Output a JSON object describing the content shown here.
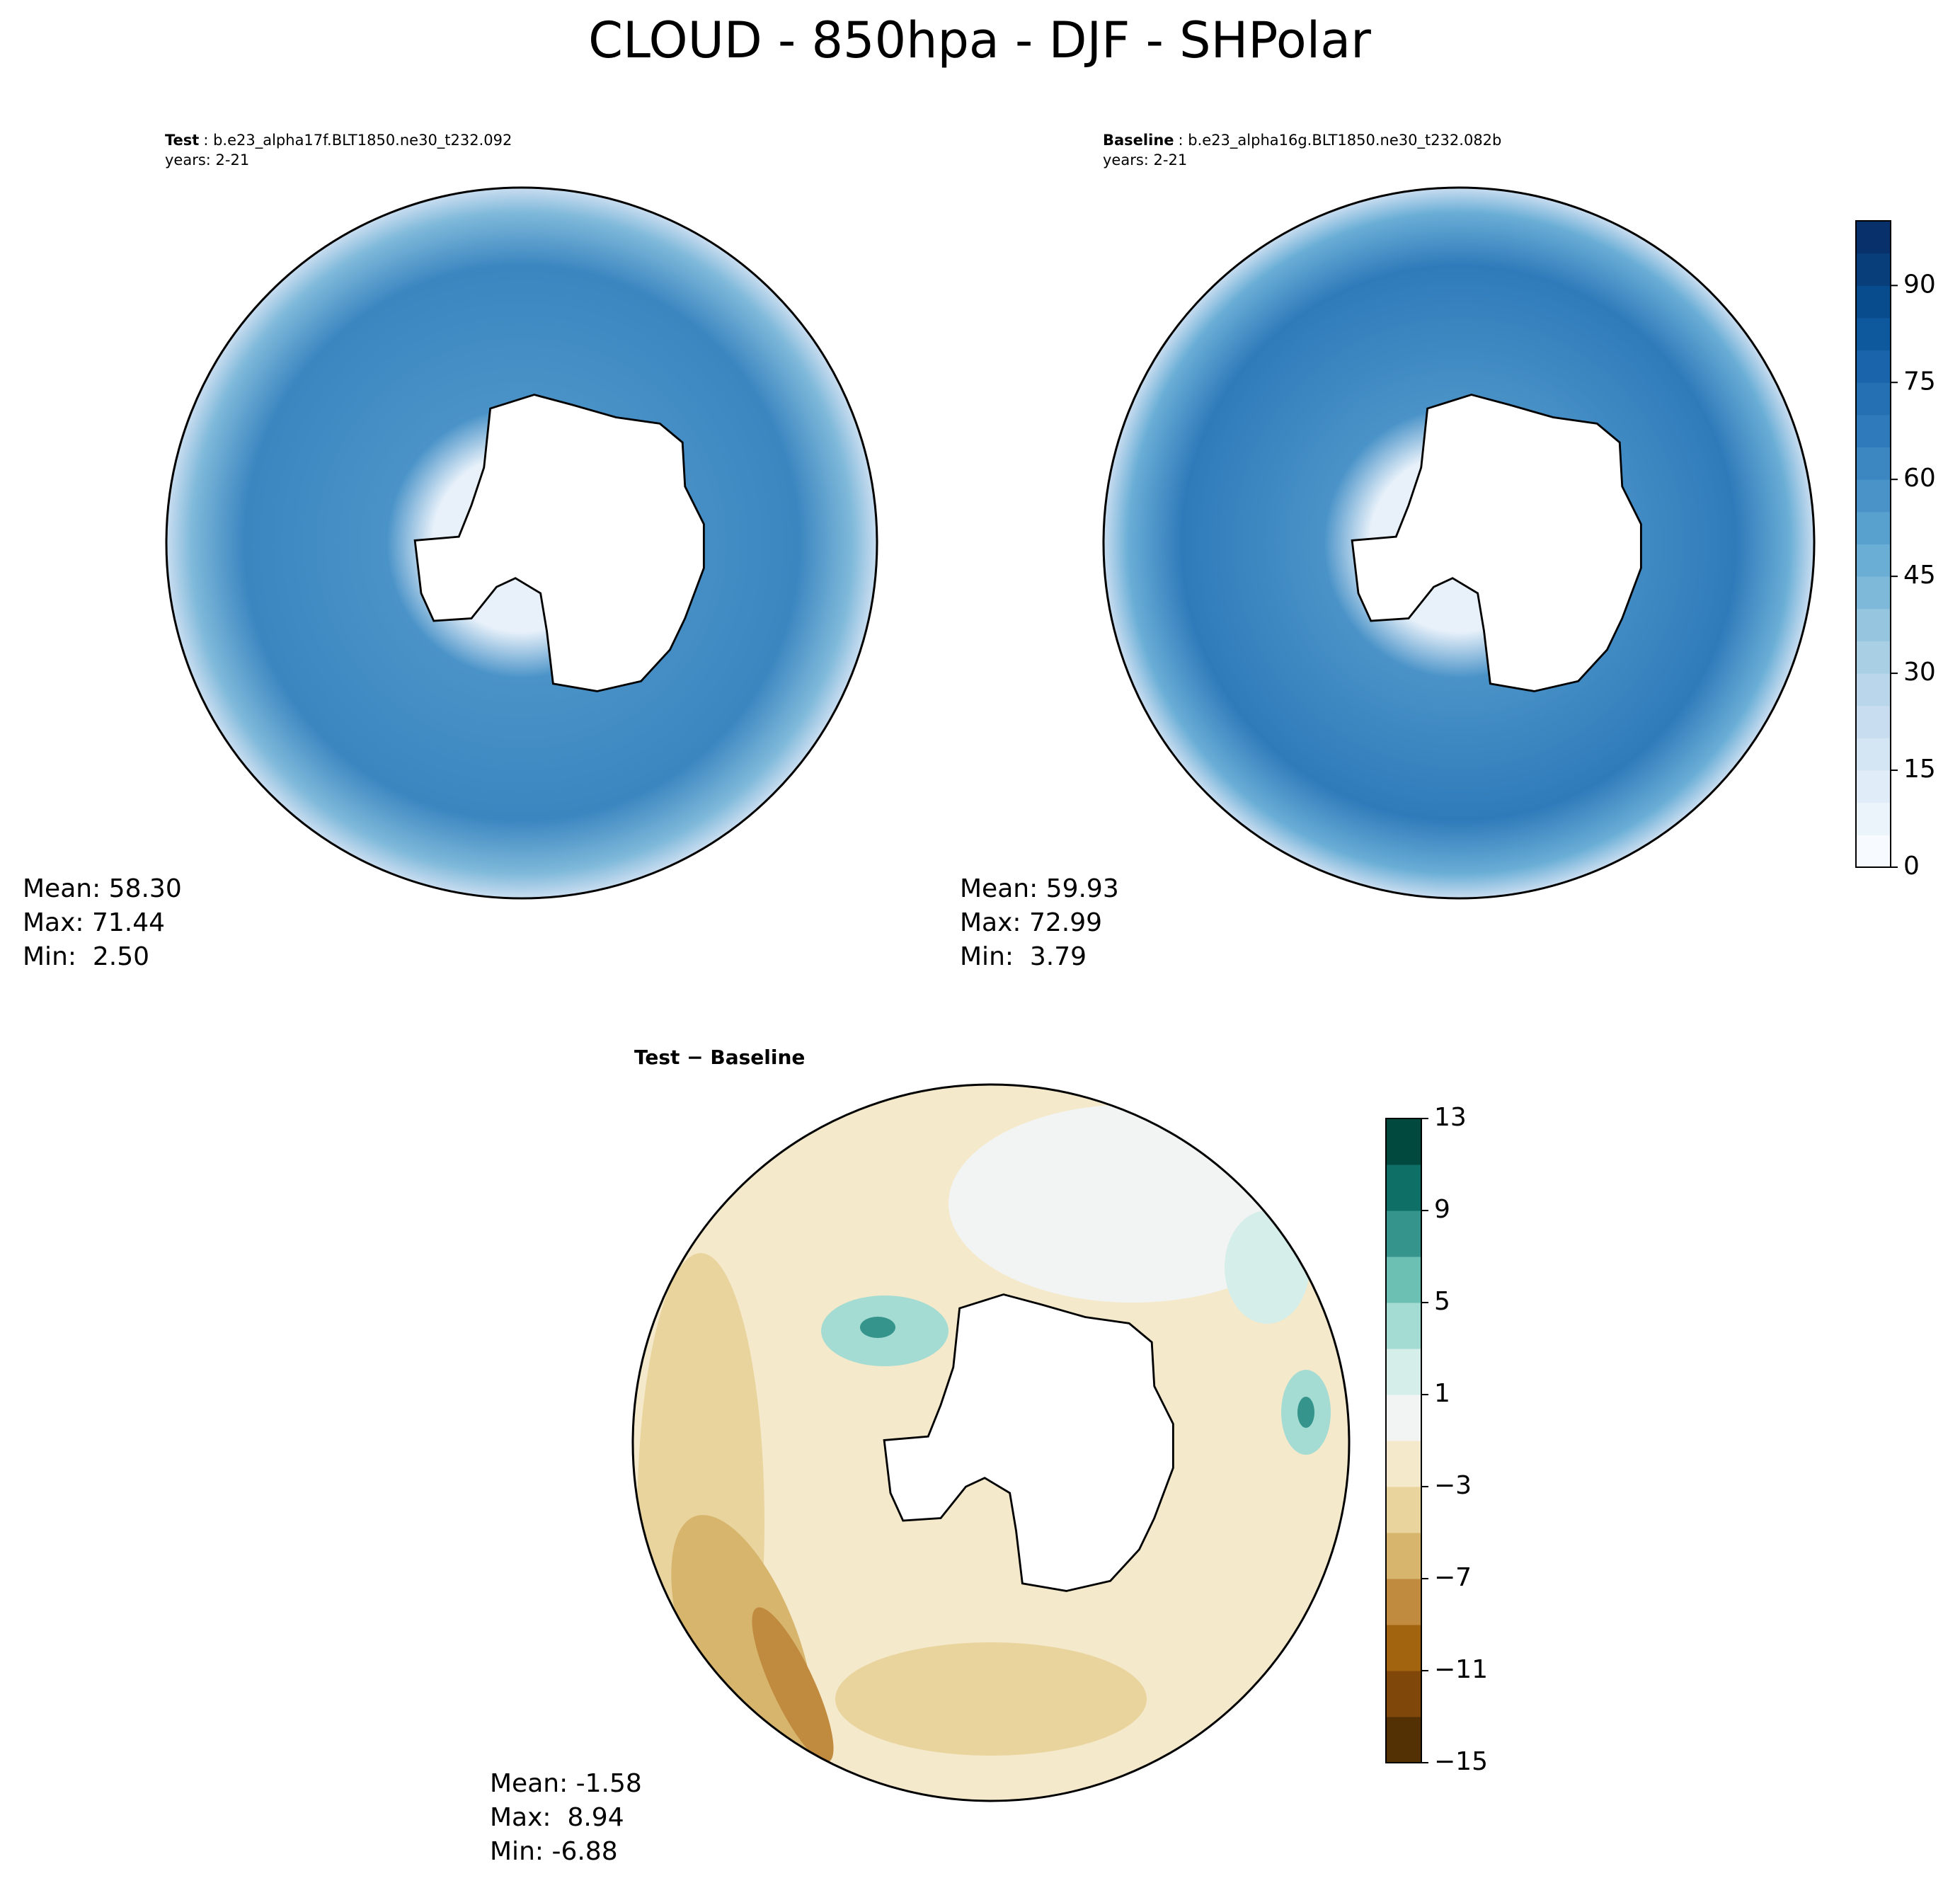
{
  "title": "CLOUD - 850hpa - DJF - SHPolar",
  "panels": [
    {
      "label": "Test",
      "case": ": b.e23_alpha17f.BLT1850.ne30_t232.092",
      "years": "years: 2-21",
      "stats": [
        "Mean: 58.30",
        "Max: 71.44",
        "Min:  2.50"
      ]
    },
    {
      "label": "Baseline",
      "case": ": b.e23_alpha16g.BLT1850.ne30_t232.082b",
      "years": "years: 2-21",
      "stats": [
        "Mean: 59.93",
        "Max: 72.99",
        "Min:  3.79"
      ]
    },
    {
      "label": "Test − Baseline",
      "stats": [
        "Mean: -1.58",
        "Max:  8.94",
        "Min: -6.88"
      ]
    }
  ],
  "colorbars": [
    {
      "ylim": [
        0,
        100
      ],
      "yticks": [
        0,
        15,
        30,
        45,
        60,
        75,
        90
      ],
      "colors": [
        "#f7fbff",
        "#ebf3fb",
        "#e0ecf8",
        "#d4e5f4",
        "#c9ddf0",
        "#bad6eb",
        "#a9cfe5",
        "#95c5df",
        "#7fb9da",
        "#6aaed6",
        "#58a1cf",
        "#4a93c8",
        "#3c87c1",
        "#2f7aba",
        "#2470b2",
        "#1964aa",
        "#0e589e",
        "#094c8d",
        "#083e7a",
        "#08306b"
      ]
    },
    {
      "ylim": [
        -15,
        13
      ],
      "yticks": [
        {
          "value": -15,
          "label": "−15"
        },
        {
          "value": -11,
          "label": "−11"
        },
        {
          "value": -7,
          "label": "−7"
        },
        {
          "value": -3,
          "label": "−3"
        },
        1,
        5,
        9,
        13
      ],
      "colors": [
        "#543005",
        "#7f4709",
        "#a3640f",
        "#c08a3f",
        "#d7b56d",
        "#e9d49e",
        "#f5e9cb",
        "#f2f4f3",
        "#d5eeea",
        "#a4dcd3",
        "#6bbfb3",
        "#35958c",
        "#0e6f67",
        "#01493f"
      ]
    }
  ]
}
